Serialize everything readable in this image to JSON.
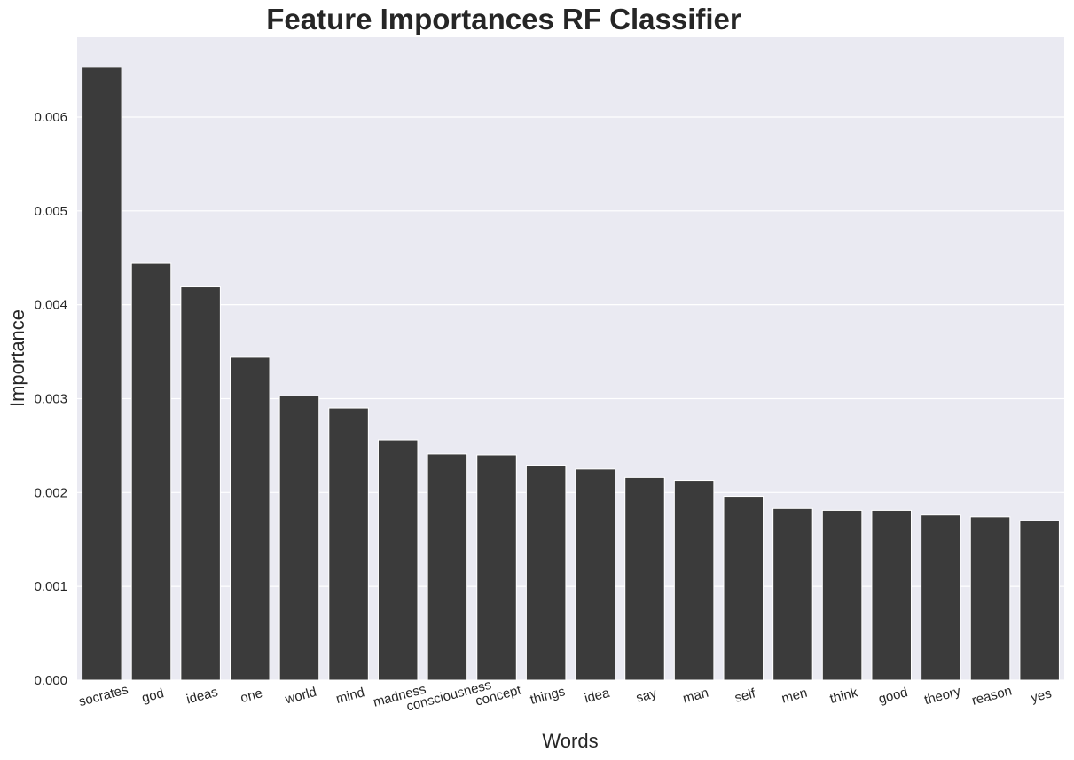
{
  "chart_data": {
    "type": "bar",
    "title": "Feature Importances RF Classifier",
    "xlabel": "Words",
    "ylabel": "Importance",
    "categories": [
      "socrates",
      "god",
      "ideas",
      "one",
      "world",
      "mind",
      "madness",
      "consciousness",
      "concept",
      "things",
      "idea",
      "say",
      "man",
      "self",
      "men",
      "think",
      "good",
      "theory",
      "reason",
      "yes"
    ],
    "values": [
      0.00653,
      0.00444,
      0.00419,
      0.00344,
      0.00303,
      0.0029,
      0.00256,
      0.00241,
      0.0024,
      0.00229,
      0.00225,
      0.00216,
      0.00213,
      0.00196,
      0.00183,
      0.00181,
      0.00181,
      0.00176,
      0.00174,
      0.0017
    ],
    "ylim": [
      0,
      0.00685
    ],
    "yticks": [
      0,
      0.001,
      0.002,
      0.003,
      0.004,
      0.005,
      0.006
    ],
    "ytick_labels": [
      "0.000",
      "0.001",
      "0.002",
      "0.003",
      "0.004",
      "0.005",
      "0.006"
    ],
    "grid": true,
    "legend": "none",
    "colors": {
      "bar": "#3b3b3b",
      "background": "#eaeaf2",
      "grid": "#ffffff",
      "text": "#262626"
    }
  }
}
